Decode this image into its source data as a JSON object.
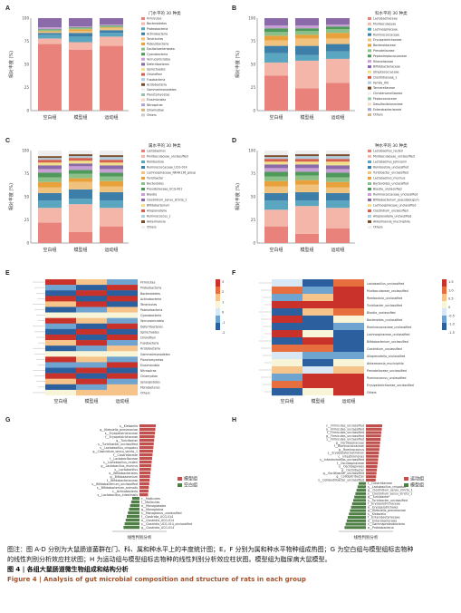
{
  "panels": [
    {
      "label": "A",
      "title": "门水平的 30 种类",
      "ylabel": "相对丰度 (%)",
      "groups": [
        "空白组",
        "模型组",
        "运动组"
      ],
      "legend": [
        "Firmicutes",
        "Bacteroidetes",
        "Proteobacteria",
        "Actinobacteria",
        "Tenericutes",
        "Patescibacteria",
        "Epsilonbacteraeota",
        "Cyanobacteria",
        "Verrucomicrobia",
        "Deferribacteres",
        "Spirochaetes",
        "Chloroflexi",
        "Fusobacteria",
        "Acidobacteria",
        "Gemmatimonadetes",
        "Planctomycetes",
        "Elusimicrobia",
        "Nitrospirae",
        "Chlamydiae",
        "Others"
      ]
    },
    {
      "label": "B",
      "title": "科水平的 30 种类",
      "ylabel": "相对丰度 (%)",
      "groups": [
        "空白组",
        "模型组",
        "运动组"
      ],
      "legend": [
        "Lactobacillaceae",
        "Muribaculaceae",
        "Lachnospiraceae",
        "Ruminococcaceae",
        "Erysipelotrichaceae",
        "Bacteroidaceae",
        "Prevotellaceae",
        "Peptostreptococcaceae",
        "Rikenellaceae",
        "Bifidobacteriaceae",
        "Streptococcaceae",
        "Clostridiaceae_1",
        "Family_XIII",
        "Tannerellaceae",
        "Christensenellaceae",
        "Peptococcaceae",
        "Desulfovibrionaceae",
        "Enterobacteriaceae",
        "Others"
      ]
    },
    {
      "label": "C",
      "title": "属水平的 30 种类",
      "ylabel": "相对丰度 (%)",
      "groups": [
        "空白组",
        "模型组",
        "运动组"
      ],
      "legend": [
        "Lactobacillus",
        "Muribaculaceae_unclassified",
        "Romboutsia",
        "Ruminococcaceae_UCG-014",
        "Lachnospiraceae_NK4A136_group",
        "Turicibacter",
        "Bacteroides",
        "Prevotellaceae_UCG-001",
        "Blautia",
        "Clostridium_sensu_stricto_1",
        "Bifidobacterium",
        "Alloprevotella",
        "Ruminococcus_1",
        "Akkermansia",
        "Others"
      ]
    },
    {
      "label": "D",
      "title": "种水平的 30 种类",
      "ylabel": "相对丰度 (%)",
      "groups": [
        "空白组",
        "模型组",
        "运动组"
      ],
      "legend": [
        "Lactobacillus_reuteri",
        "Muribaculaceae_unclassified",
        "Lactobacillus_johnsonii",
        "Romboutsia_unclassified",
        "Turicibacter_unclassified",
        "Lactobacillus_murinus",
        "Bacteroides_unclassified",
        "Blautia_unclassified",
        "Ruminococcaceae_unclassified",
        "Bifidobacterium_pseudolongum",
        "Lachnospiraceae_unclassified",
        "Clostridium_unclassified",
        "Alloprevotella_unclassified",
        "Akkermansia_muciniphila",
        "Others"
      ]
    },
    {
      "label": "E",
      "groups": [
        "空白组",
        "模型组",
        "运动组"
      ],
      "rows": [
        "Firmicutes",
        "Proteobacteria",
        "Bacteroidetes",
        "Actinobacteria",
        "Tenericutes",
        "Patescibacteria",
        "Cyanobacteria",
        "Verrucomicrobia",
        "Deferribacteres",
        "Spirochaetes",
        "Chloroflexi",
        "Fusobacteria",
        "Acidobacteria",
        "Gemmatimonadetes",
        "Planctomycetes",
        "Elusimicrobia",
        "Nitrospirae",
        "Chlamydiae",
        "Synergistetes",
        "Fibrobacteres",
        "Others"
      ],
      "scale": [
        "3",
        "2",
        "1",
        "0",
        "-1",
        "-2"
      ]
    },
    {
      "label": "F",
      "groups": [
        "空白组",
        "模型组",
        "运动组"
      ],
      "rows": [
        "Lactobacillus_unclassified",
        "Muribaculaceae_unclassified",
        "Romboutsia_unclassified",
        "Turicibacter_unclassified",
        "Blautia_unclassified",
        "Bacteroides_unclassified",
        "Ruminococcaceae_unclassified",
        "Lachnospiraceae_unclassified",
        "Bifidobacterium_unclassified",
        "Clostridium_unclassified",
        "Alloprevotella_unclassified",
        "Akkermansia_muciniphila",
        "Prevotellaceae_unclassified",
        "Ruminococcus_unclassified",
        "Erysipelotrichaceae_unclassified",
        "Others"
      ],
      "scale": [
        "1.5",
        "1.0",
        "0.5",
        "0",
        "-0.5",
        "-1.0",
        "-1.5"
      ]
    },
    {
      "label": "G",
      "xlabel": "线性判别分析",
      "legend": [
        "模型组",
        "空白组"
      ],
      "up": [
        "s__Klebsiella",
        "g__Klebsiella_pneumoniae",
        "s__Erysipelotrichaceae",
        "f__Erysipelotrichaceae",
        "g__Turicibacter",
        "s__Turicibacter_unclassified",
        "s__Lactobacillus_crispatus",
        "g__Clostridium_sensu_stricto_1",
        "f__Clostridiaceae",
        "f__Lactobacillaceae",
        "s__Lactobacillus_reuteri",
        "g__Lactobacillus_murinus",
        "s__Lactobacillus",
        "o__Bifidobacteriales",
        "g__Bifidobacterium",
        "f__Bifidobacteriaceae",
        "s__Bifidobacterium_unclassified",
        "s__Bifidobacterium_animalis",
        "c__Actinobacteria",
        "s__Lactobacillus_intestinalis"
      ],
      "down": [
        "c__Mollicutes",
        "f__Mollicutes",
        "o__Monoglobales",
        "g__Monoglobus",
        "s__Monoglobus_unclassified",
        "f__Clostridia_UCG-014",
        "o__Clostridia_UCG-014",
        "s__Clostridia_UCG-014_unclassified",
        "g__Clostridia_UCG-014"
      ]
    },
    {
      "label": "H",
      "xlabel": "线性判别分析",
      "legend": [
        "运动组",
        "模型组"
      ],
      "up": [
        "c__Firmicutes_unclassified",
        "o__Firmicutes_unclassified",
        "f__Firmicutes_unclassified",
        "g__Firmicutes_unclassified",
        "s__Firmicutes_unclassified",
        "g__Oscillospiraceae",
        "f__Ruminococcaceae",
        "g__Ruminococcus",
        "s__Erysipelatoclostridium",
        "c__Intestinimonas",
        "s__Intestinimonas_unclassified",
        "f__Oscillospiraceae",
        "o__Oscillospirales",
        "g__Oscillibacter",
        "g__Oscillibacter_unclassified",
        "g__Colidextribacter",
        "s__Colidextribacter_unclassified"
      ],
      "down": [
        "f__Clostridiaceae",
        "s__Lactobacillus_crispatus",
        "g__Clostridium_sensu_stricto_1",
        "s__Clostridium_sensu_stricto_1",
        "g__Turicibacter",
        "s__Turicibacter_unclassified",
        "f__Erysipelotrichaceae",
        "o__Erysipelotrichales",
        "g__Klebsiella_pneumoniae",
        "s__Klebsiella",
        "f__Enterobacteriaceae",
        "o__Enterobacterales",
        "c__Gammaproteobacteria",
        "p__Proteobacteria"
      ]
    }
  ],
  "caption": {
    "line1": "图注：图 A-D 分别为大鼠肠道菌群在门、科、属和种水平上的丰度统计图；E，F 分别为属和种水平物种组成热图；G 为空白组与模型组标志物种",
    "line2": "的线性判别分析效应柱状图；H 为运动组与模型组标志物种的线性判别分析效应柱状图。模型组为脂尿病大鼠模型。",
    "title_cn": "图 4 | 各组大鼠肠道微生物组成和结构分析",
    "title_en": "Figure 4 | Analysis of gut microbial composition and structure of rats in each group"
  },
  "colors": {
    "bar_red": "#c0504d",
    "bar_green": "#4e7f44"
  }
}
